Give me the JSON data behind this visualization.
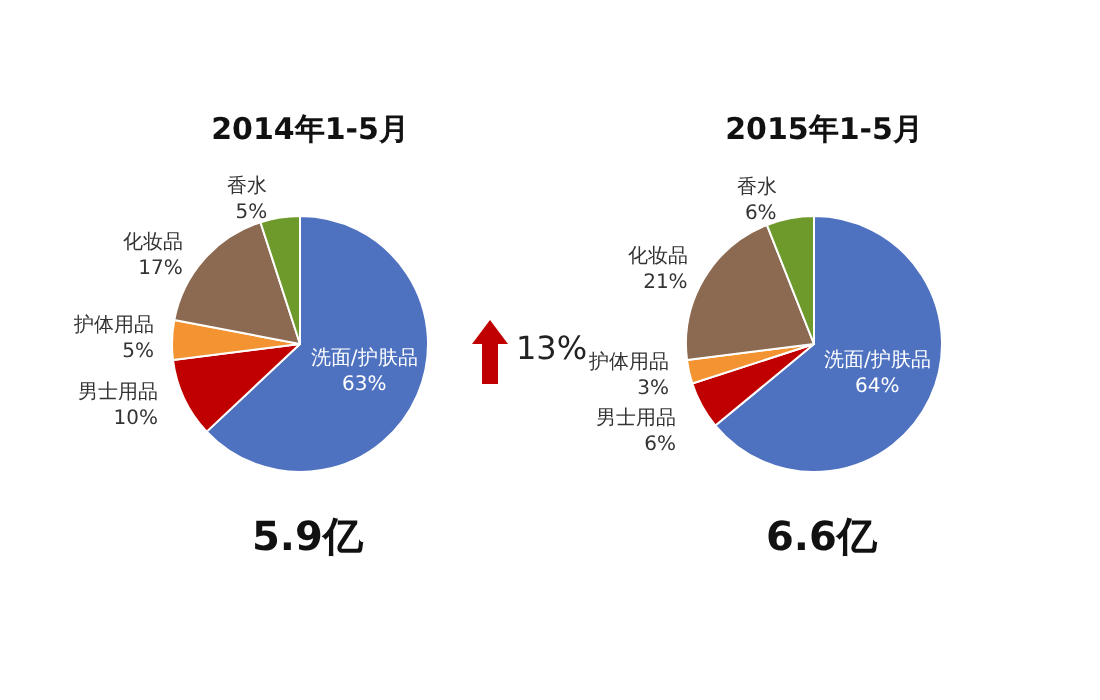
{
  "chart_data": [
    {
      "type": "pie",
      "title": "2014年1-5月",
      "categories": [
        "洗面/护肤品",
        "男士用品",
        "护体用品",
        "化妆品",
        "香水"
      ],
      "values": [
        63,
        10,
        5,
        17,
        5
      ],
      "colors": [
        "#4f72c0",
        "#c00000",
        "#f39331",
        "#8b6a51",
        "#6e9a2c"
      ],
      "value_labels": [
        "63%",
        "10%",
        "5%",
        "17%",
        "5%"
      ],
      "annotations": [
        "5.9亿",
        "13%"
      ]
    },
    {
      "type": "pie",
      "title": "2015年1-5月",
      "categories": [
        "洗面/护肤品",
        "男士用品",
        "护体用品",
        "化妆品",
        "香水"
      ],
      "values": [
        64,
        6,
        3,
        21,
        6
      ],
      "colors": [
        "#4f72c0",
        "#c00000",
        "#f39331",
        "#8b6a51",
        "#6e9a2c"
      ],
      "value_labels": [
        "64%",
        "6%",
        "3%",
        "21%",
        "6%"
      ],
      "annotations": [
        "6.6亿"
      ]
    }
  ]
}
